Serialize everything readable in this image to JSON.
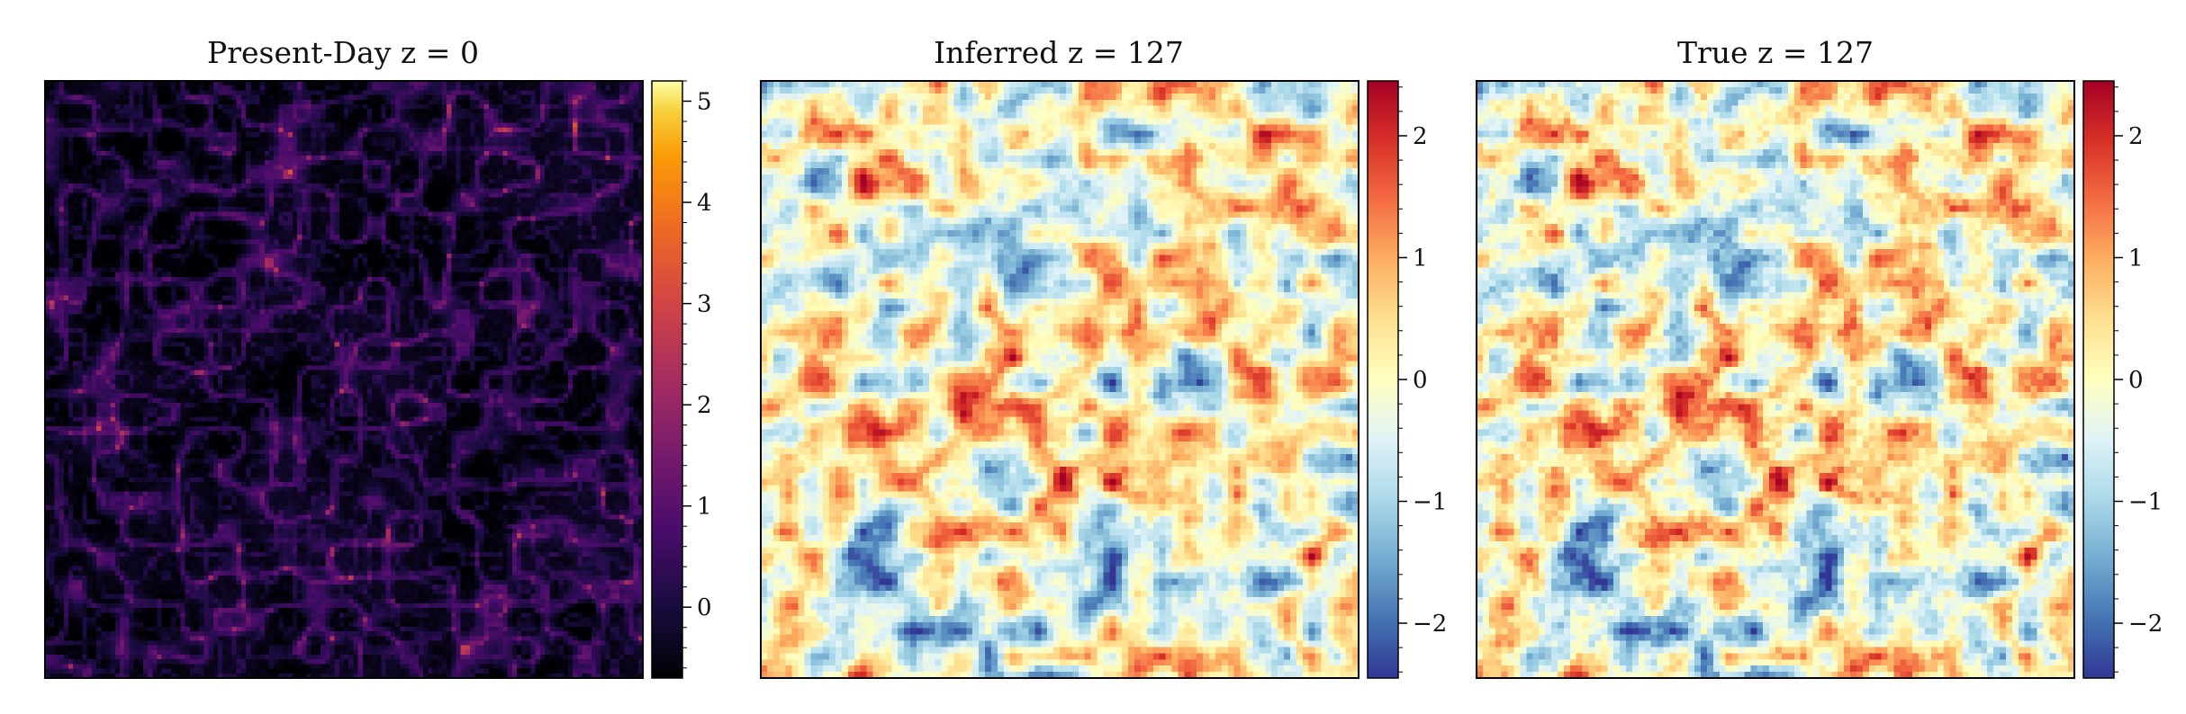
{
  "chart_data": [
    {
      "type": "heatmap",
      "title": "Present-Day z = 0",
      "colormap": "inferno",
      "grid": false,
      "legend": "none",
      "colorbar": {
        "range": [
          -0.7,
          5.2
        ],
        "ticks": [
          0,
          1,
          2,
          3,
          4,
          5
        ],
        "tick_labels": [
          "0",
          "1",
          "2",
          "3",
          "4",
          "5"
        ]
      },
      "field": {
        "kind": "filamentary density field",
        "resolution": [
          128,
          128
        ],
        "seed": 7
      }
    },
    {
      "type": "heatmap",
      "title": "Inferred z = 127",
      "colormap": "RdYlBu_r",
      "grid": false,
      "legend": "none",
      "colorbar": {
        "range": [
          -2.45,
          2.45
        ],
        "ticks": [
          2,
          1,
          0,
          -1,
          -2
        ],
        "tick_labels": [
          "2",
          "1",
          "0",
          "−1",
          "−2"
        ]
      },
      "field": {
        "kind": "gaussian random field",
        "resolution": [
          96,
          96
        ],
        "seed": 21
      }
    },
    {
      "type": "heatmap",
      "title": "True z = 127",
      "colormap": "RdYlBu_r",
      "grid": false,
      "legend": "none",
      "colorbar": {
        "range": [
          -2.45,
          2.45
        ],
        "ticks": [
          2,
          1,
          0,
          -1,
          -2
        ],
        "tick_labels": [
          "2",
          "1",
          "0",
          "−1",
          "−2"
        ]
      },
      "field": {
        "kind": "gaussian random field",
        "resolution": [
          96,
          96
        ],
        "seed": 21
      }
    }
  ]
}
